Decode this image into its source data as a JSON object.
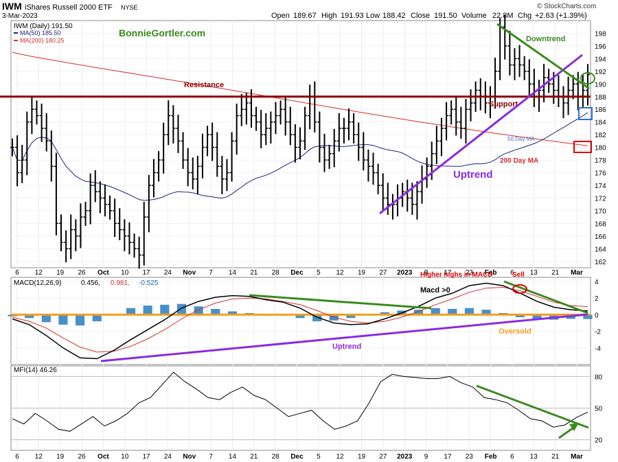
{
  "header": {
    "symbol": "IWM",
    "name": "iShares Russell 2000 ETF",
    "exchange": "NYSE",
    "date": "3-Mar-2023",
    "open_label": "Open",
    "open": "189.67",
    "high_label": "High",
    "high": "191.93",
    "low_label": "Low",
    "low": "188.42",
    "close_label": "Close",
    "close": "191.50",
    "volume_label": "Volume",
    "volume": "22.8M",
    "chg_label": "Chg",
    "chg": "+2.63 (+1.39%)",
    "credit": "© StockCharts.com"
  },
  "price_panel": {
    "legend_main": "IWM (Daily) 191.50",
    "legend_ma50": "MA(50) 185.50",
    "legend_ma200": "MA(200) 180.25",
    "site": "BonnieGortler.com",
    "annotations": {
      "resistance": "Resistance",
      "support": "Support",
      "downtrend": "Downtrend",
      "uptrend": "Uptrend",
      "ma50": "50 Day MA",
      "ma200": "200 Day MA"
    }
  },
  "macd_panel": {
    "legend_title": "MACD(12,26,9)",
    "v1": "0.456,",
    "v2": "0.981,",
    "v3": "-0.525",
    "annotations": {
      "higher_highs": "Higher highs in MACD",
      "sell": "Sell",
      "macd_gt0": "Macd >0",
      "uptrend": "Uptrend",
      "oversold": "Oversold"
    }
  },
  "mfi_panel": {
    "legend": "MFI(14) 46.26"
  },
  "x_labels": [
    "6",
    "12",
    "19",
    "26",
    "Oct",
    "10",
    "17",
    "24",
    "Nov",
    "7",
    "14",
    "21",
    "28",
    "Dec",
    "5",
    "12",
    "19",
    "27",
    "2023",
    "9",
    "17",
    "23",
    "Feb",
    "6",
    "13",
    "21",
    "Mar"
  ],
  "colors": {
    "price_bars": "#000000",
    "ma50": "#1a237e",
    "ma200": "#d32f2f",
    "resistance": "#8b0000",
    "downtrend": "#3a8a1e",
    "uptrend": "#8a2be2",
    "oversold": "#f0a020",
    "histogram": "#4a90c8"
  },
  "chart_data": [
    {
      "type": "bar",
      "title": "IWM iShares Russell 2000 ETF",
      "ylim": [
        161,
        200
      ],
      "y_ticks": [
        162,
        164,
        166,
        168,
        170,
        172,
        174,
        176,
        178,
        180,
        182,
        184,
        186,
        188,
        190,
        192,
        194,
        196,
        198
      ],
      "levels": {
        "resistance": 188,
        "support": 188
      },
      "series": [
        {
          "name": "IWM (Daily)",
          "close": [
            180,
            176,
            178,
            184,
            186,
            185,
            183,
            181,
            177,
            168,
            165,
            164,
            167,
            166,
            169,
            170,
            174,
            173,
            172,
            171,
            170,
            168,
            167,
            166,
            165,
            164,
            163,
            169,
            174,
            176,
            178,
            182,
            185,
            183,
            181,
            178,
            176,
            175,
            177,
            180,
            182,
            180,
            177,
            175,
            176,
            181,
            185,
            186,
            187,
            185,
            184,
            182,
            183,
            184,
            185,
            186,
            184,
            182,
            180,
            181,
            185,
            188,
            184,
            180,
            178,
            179,
            181,
            183,
            183,
            184,
            182,
            180,
            178,
            177,
            176,
            174,
            172,
            171,
            171,
            172,
            173,
            172,
            171,
            173,
            175,
            177,
            179,
            181,
            183,
            185,
            186,
            184,
            183,
            186,
            187,
            189,
            188,
            187,
            188,
            192,
            199,
            196,
            193,
            194,
            193,
            192,
            190,
            188,
            189,
            191,
            190,
            189,
            188,
            187,
            189,
            190,
            188,
            189,
            191.5
          ]
        },
        {
          "name": "MA(50)",
          "values": [
            185.5
          ]
        },
        {
          "name": "MA(200)",
          "values": [
            180.25
          ]
        }
      ]
    },
    {
      "type": "line",
      "title": "MACD(12,26,9)",
      "ylim": [
        -6,
        4.5
      ],
      "y_ticks": [
        -4,
        -2,
        0,
        2,
        4
      ],
      "series": [
        {
          "name": "MACD",
          "values": [
            -0.5,
            -1.2,
            -2.5,
            -4.0,
            -5.2,
            -5.3,
            -4.3,
            -3.0,
            -1.8,
            -0.6,
            0.8,
            1.6,
            2.1,
            2.3,
            2.2,
            1.8,
            1.5,
            0.8,
            -0.3,
            -1.0,
            -1.2,
            -1.1,
            -0.5,
            0.2,
            1.0,
            2.0,
            2.6,
            3.5,
            3.8,
            3.5,
            2.6,
            1.6,
            0.9,
            0.6,
            0.456
          ]
        },
        {
          "name": "Signal",
          "values": [
            -0.3,
            -0.8,
            -1.6,
            -2.8,
            -3.9,
            -4.5,
            -4.4,
            -3.8,
            -2.9,
            -1.8,
            -0.5,
            0.6,
            1.4,
            1.9,
            2.0,
            1.9,
            1.6,
            1.2,
            0.5,
            -0.3,
            -0.8,
            -1.0,
            -0.8,
            -0.3,
            0.4,
            1.2,
            1.9,
            2.7,
            3.2,
            3.3,
            2.9,
            2.2,
            1.5,
            1.1,
            0.981
          ]
        },
        {
          "name": "Histogram",
          "values": [
            -0.2,
            -0.4,
            -0.9,
            -1.2,
            -1.3,
            -0.8,
            0.1,
            0.8,
            1.1,
            1.2,
            1.3,
            1.0,
            0.7,
            0.4,
            0.2,
            -0.1,
            -0.1,
            -0.4,
            -0.8,
            -0.7,
            -0.4,
            -0.1,
            0.3,
            0.5,
            0.6,
            0.8,
            0.7,
            0.8,
            0.6,
            0.2,
            -0.3,
            -0.6,
            -0.6,
            -0.5,
            -0.525
          ]
        }
      ]
    },
    {
      "type": "line",
      "title": "MFI(14)",
      "ylim": [
        10,
        90
      ],
      "y_ticks": [
        20,
        50,
        80
      ],
      "series": [
        {
          "name": "MFI",
          "values": [
            40,
            35,
            45,
            38,
            30,
            28,
            35,
            42,
            33,
            38,
            45,
            55,
            60,
            72,
            84,
            75,
            68,
            60,
            58,
            65,
            70,
            62,
            58,
            50,
            42,
            45,
            48,
            38,
            30,
            33,
            38,
            55,
            75,
            82,
            80,
            79,
            78,
            78,
            80,
            74,
            70,
            60,
            58,
            55,
            48,
            40,
            38,
            32,
            34,
            41,
            46.26
          ]
        }
      ]
    }
  ]
}
